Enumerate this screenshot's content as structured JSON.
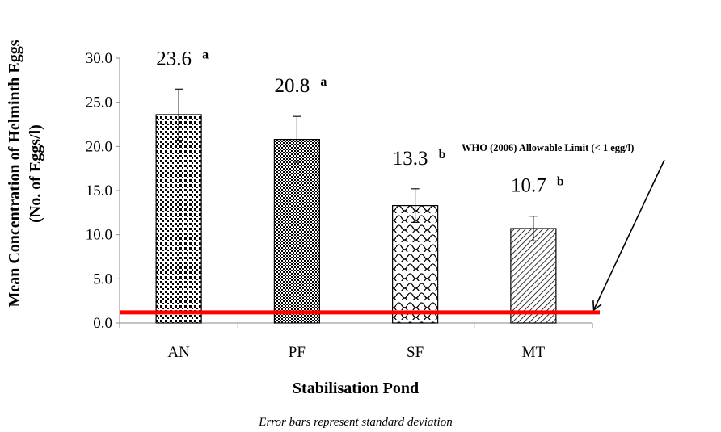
{
  "chart_data": {
    "type": "bar",
    "title": "",
    "xlabel": "Stabilisation Pond",
    "ylabel_line1": "Mean Concentration of Helminth Eggs",
    "ylabel_line2": "(No. of Eggs/l)",
    "ylim": [
      0,
      30
    ],
    "yticks": [
      "0.0",
      "5.0",
      "10.0",
      "15.0",
      "20.0",
      "25.0",
      "30.0"
    ],
    "categories": [
      "AN",
      "PF",
      "SF",
      "MT"
    ],
    "values": [
      23.6,
      20.8,
      13.3,
      10.7
    ],
    "errors": [
      2.9,
      2.6,
      1.9,
      1.4
    ],
    "value_labels": [
      "23.6",
      "20.8",
      "13.3",
      "10.7"
    ],
    "significance_letters": [
      "a",
      "a",
      "b",
      "b"
    ],
    "bar_patterns": [
      "dots",
      "checker",
      "scales",
      "diagonal"
    ],
    "reference_line": {
      "value": 1.2,
      "color": "#ff0000",
      "label": "WHO (2006) Allowable Limit (< 1 egg/l)"
    },
    "grid": false,
    "legend": "none",
    "footnote": "Error bars represent standard deviation"
  }
}
